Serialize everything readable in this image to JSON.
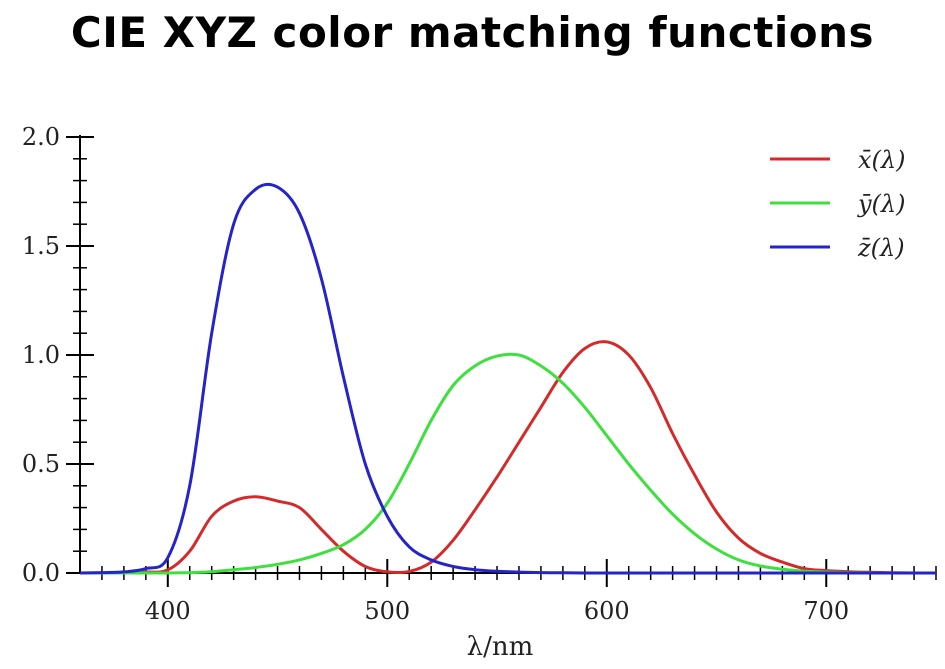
{
  "title": "CIE XYZ color matching functions",
  "chart_data": {
    "type": "line",
    "title": "CIE XYZ color matching functions",
    "xlabel": "λ/nm",
    "ylabel": "",
    "xlim": [
      360,
      750
    ],
    "ylim": [
      0,
      2.0
    ],
    "x_ticks": [
      400,
      500,
      600,
      700
    ],
    "y_ticks": [
      0.0,
      0.5,
      1.0,
      1.5,
      2.0
    ],
    "x_tick_labels": [
      "400",
      "500",
      "600",
      "700"
    ],
    "y_tick_labels": [
      "0.0",
      "0.5",
      "1.0",
      "1.5",
      "2.0"
    ],
    "grid": false,
    "legend_position": "top-right",
    "x": [
      360,
      370,
      380,
      390,
      400,
      410,
      420,
      430,
      440,
      450,
      460,
      470,
      480,
      490,
      500,
      510,
      520,
      530,
      540,
      550,
      560,
      570,
      580,
      590,
      600,
      610,
      620,
      630,
      640,
      650,
      660,
      670,
      680,
      690,
      700,
      710,
      720,
      730,
      740,
      750
    ],
    "series": [
      {
        "name": "x̄(λ)",
        "color": "#d42a2a",
        "values": [
          0.0,
          0.0,
          0.001,
          0.004,
          0.014,
          0.1,
          0.26,
          0.33,
          0.35,
          0.33,
          0.3,
          0.2,
          0.1,
          0.03,
          0.005,
          0.007,
          0.05,
          0.15,
          0.29,
          0.44,
          0.6,
          0.76,
          0.92,
          1.03,
          1.06,
          1.0,
          0.85,
          0.64,
          0.45,
          0.28,
          0.16,
          0.09,
          0.05,
          0.02,
          0.011,
          0.006,
          0.003,
          0.001,
          0.0,
          0.0
        ]
      },
      {
        "name": "ȳ(λ)",
        "color": "#3ee03e",
        "values": [
          0.0,
          0.0,
          0.0,
          0.0,
          0.0,
          0.002,
          0.006,
          0.015,
          0.025,
          0.04,
          0.06,
          0.09,
          0.13,
          0.2,
          0.32,
          0.5,
          0.7,
          0.86,
          0.95,
          0.995,
          1.0,
          0.95,
          0.87,
          0.76,
          0.63,
          0.5,
          0.38,
          0.27,
          0.18,
          0.11,
          0.06,
          0.032,
          0.017,
          0.008,
          0.004,
          0.002,
          0.001,
          0.0,
          0.0,
          0.0
        ]
      },
      {
        "name": "z̄(λ)",
        "color": "#2424c8",
        "values": [
          0.0,
          0.002,
          0.005,
          0.02,
          0.07,
          0.4,
          1.1,
          1.6,
          1.76,
          1.77,
          1.65,
          1.35,
          0.9,
          0.5,
          0.26,
          0.12,
          0.06,
          0.03,
          0.015,
          0.008,
          0.004,
          0.002,
          0.001,
          0.0,
          0.0,
          0.0,
          0.0,
          0.0,
          0.0,
          0.0,
          0.0,
          0.0,
          0.0,
          0.0,
          0.0,
          0.0,
          0.0,
          0.0,
          0.0,
          0.0
        ]
      }
    ]
  }
}
